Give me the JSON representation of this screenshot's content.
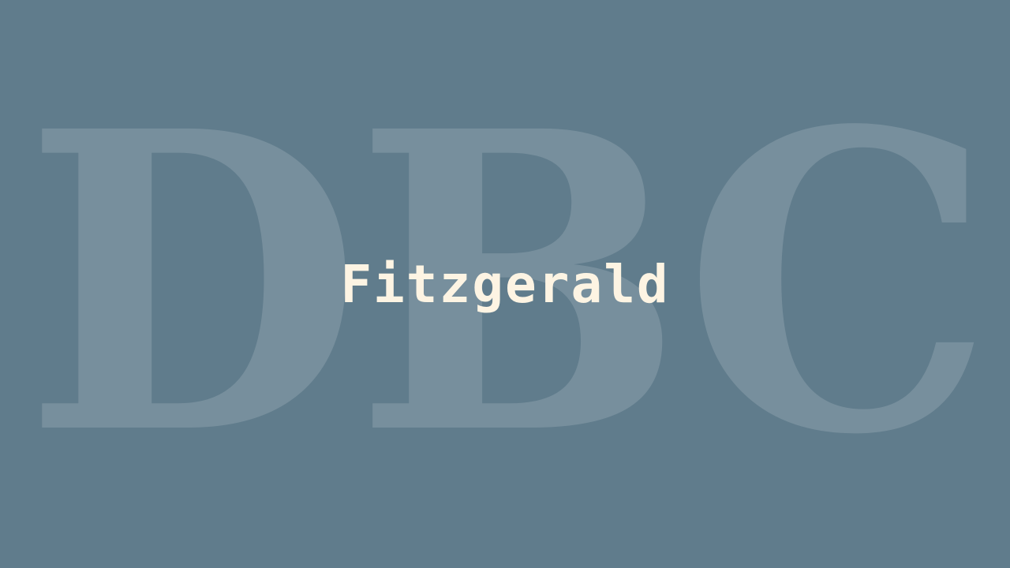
{
  "background": {
    "color": "#607c8c",
    "watermark_text": "DBC",
    "watermark_color": "rgba(255,255,255,0.15)"
  },
  "title": {
    "text": "Fitzgerald",
    "color": "#fdf4e3"
  }
}
